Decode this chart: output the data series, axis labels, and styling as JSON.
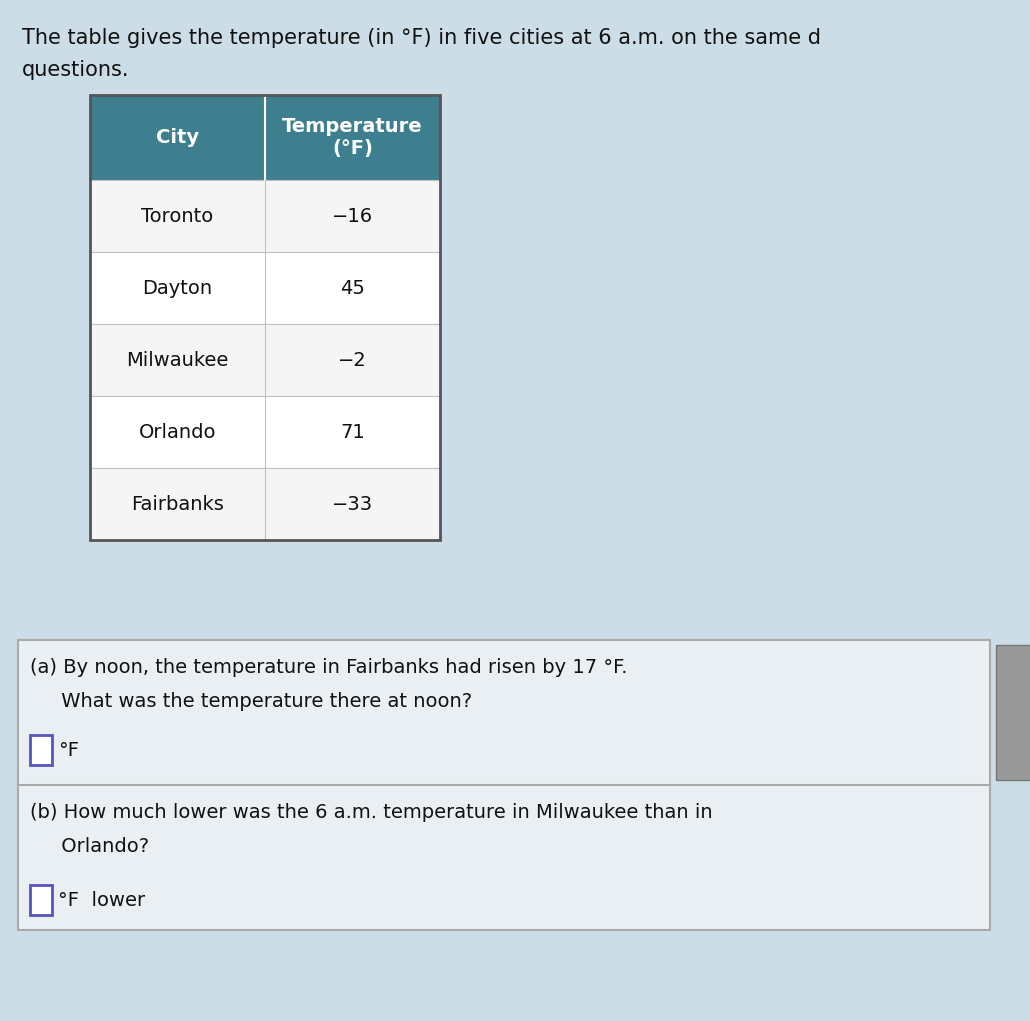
{
  "title_line1": "The table gives the temperature (in °F) in five cities at 6 a.m. on the same d",
  "title_line2": "questions.",
  "cities": [
    "Toronto",
    "Dayton",
    "Milwaukee",
    "Orlando",
    "Fairbanks"
  ],
  "temperatures": [
    "−16",
    "45",
    "−2",
    "71",
    "−33"
  ],
  "col_header1": "City",
  "col_header2": "Temperature\n(°F)",
  "header_bg": "#3d7f8f",
  "header_text_color": "#ffffff",
  "row_bg_even": "#f5f5f5",
  "row_bg_odd": "#ffffff",
  "cell_border_color": "#c0c0c0",
  "outer_border_color": "#555555",
  "question_a_line1": "(a) By noon, the temperature in Fairbanks had risen by 17 °F.",
  "question_a_line2": "     What was the temperature there at noon?",
  "question_a_answer_suffix": "°F",
  "question_b_line1": "(b) How much lower was the 6 a.m. temperature in Milwaukee than in",
  "question_b_line2": "     Orlando?",
  "question_b_answer_suffix": "°F  lower",
  "bg_color": "#ccdde8",
  "question_box_bg": "#eaeff3",
  "question_box_border": "#aaaaaa",
  "answer_box_color": "#5555bb",
  "gray_button_color": "#999999",
  "font_size_title": 15,
  "font_size_header": 14,
  "font_size_cell": 14,
  "font_size_question": 14
}
